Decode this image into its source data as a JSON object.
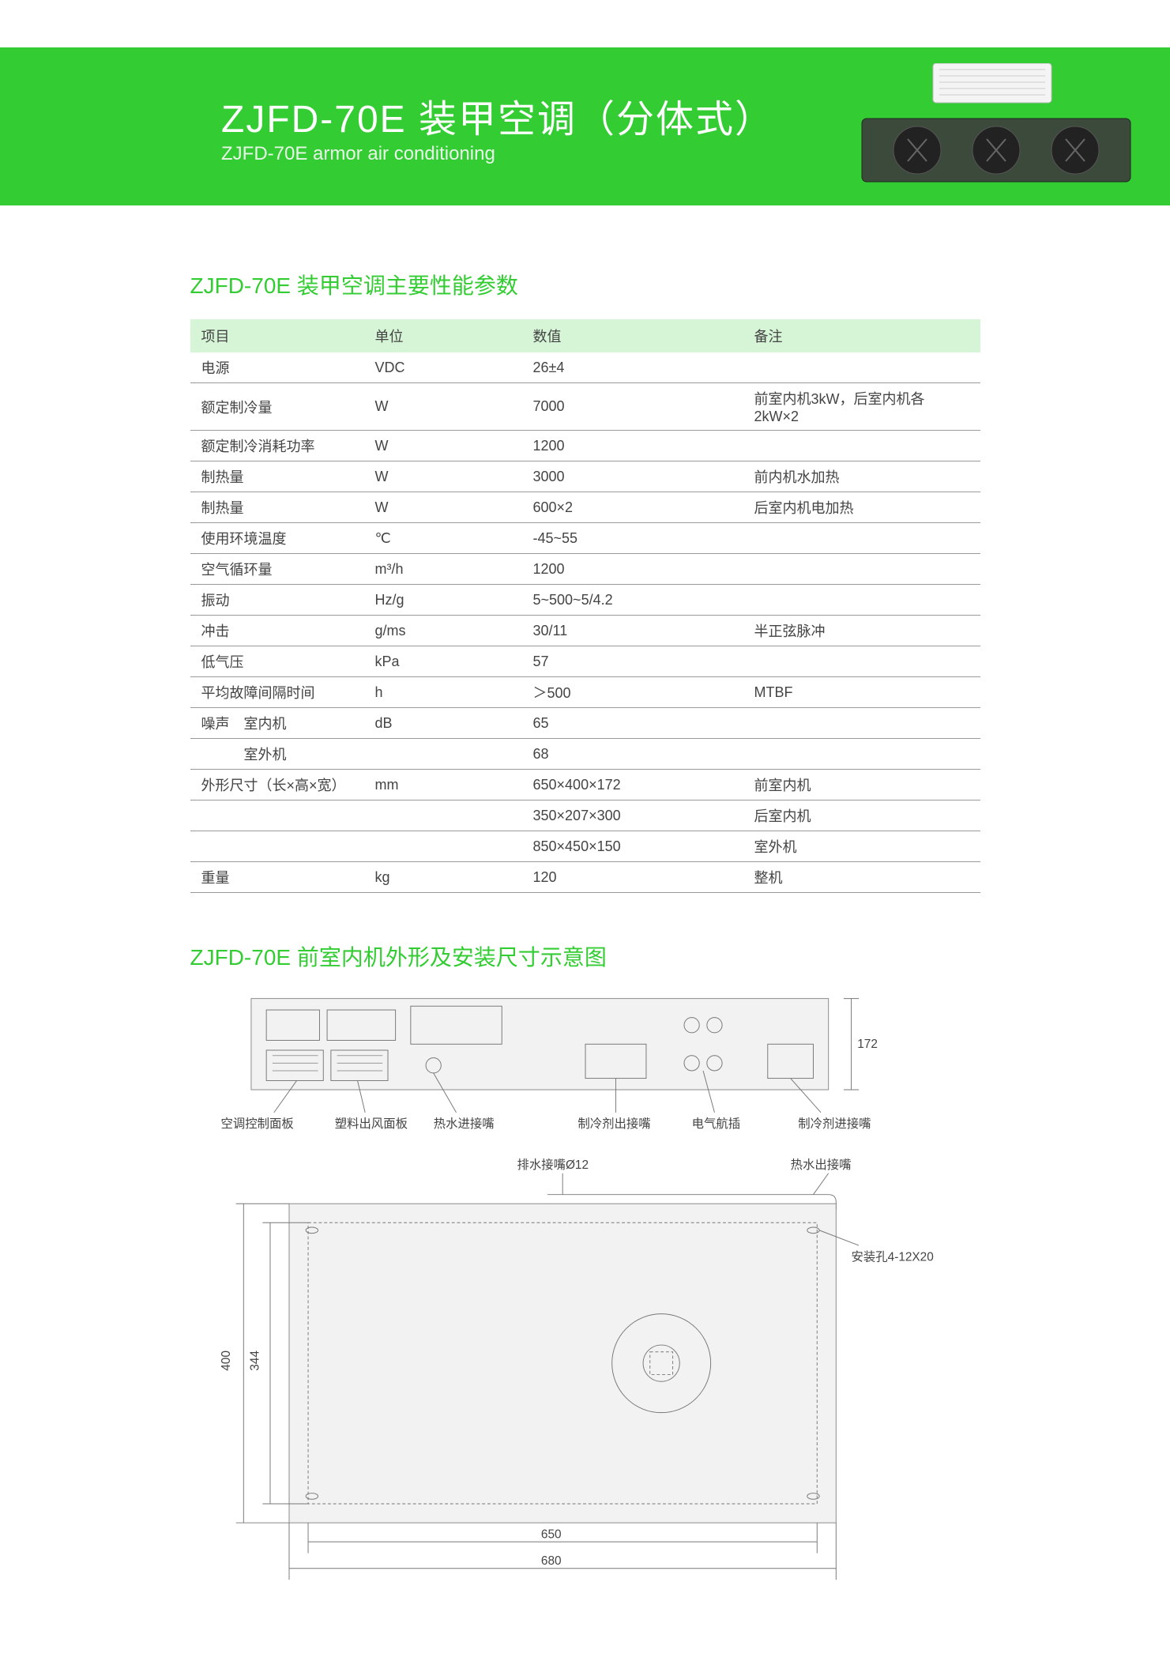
{
  "header": {
    "title_cn": "ZJFD-70E 装甲空调（分体式）",
    "title_en": "ZJFD-70E armor air conditioning",
    "bg_color": "#33cc33"
  },
  "section_table_title": "ZJFD-70E 装甲空调主要性能参数",
  "table": {
    "columns": [
      "项目",
      "单位",
      "数值",
      "备注"
    ],
    "header_bg": "#d6f5d6",
    "border_color": "#999999",
    "rows": [
      {
        "item": "电源",
        "unit": "VDC",
        "value": "26±4",
        "note": ""
      },
      {
        "item": "额定制冷量",
        "unit": "W",
        "value": "7000",
        "note": "前室内机3kW，后室内机各2kW×2"
      },
      {
        "item": "额定制冷消耗功率",
        "unit": "W",
        "value": "1200",
        "note": ""
      },
      {
        "item": "制热量",
        "unit": "W",
        "value": "3000",
        "note": "前内机水加热"
      },
      {
        "item": "制热量",
        "unit": "W",
        "value": "600×2",
        "note": "后室内机电加热"
      },
      {
        "item": "使用环境温度",
        "unit": "℃",
        "value": "-45~55",
        "note": ""
      },
      {
        "item": "空气循环量",
        "unit": "m³/h",
        "value": "1200",
        "note": ""
      },
      {
        "item": "振动",
        "unit": "Hz/g",
        "value": "5~500~5/4.2",
        "note": ""
      },
      {
        "item": "冲击",
        "unit": "g/ms",
        "value": "30/11",
        "note": "半正弦脉冲"
      },
      {
        "item": "低气压",
        "unit": "kPa",
        "value": "57",
        "note": ""
      },
      {
        "item": "平均故障间隔时间",
        "unit": "h",
        "value": "＞500",
        "note": "MTBF"
      },
      {
        "item": "噪声　室内机",
        "unit": "dB",
        "value": "65",
        "note": ""
      },
      {
        "item": "　　　室外机",
        "unit": "",
        "value": "68",
        "note": ""
      },
      {
        "item": "外形尺寸（长×高×宽）",
        "unit": "mm",
        "value": "650×400×172",
        "note": "前室内机"
      },
      {
        "item": "",
        "unit": "",
        "value": "350×207×300",
        "note": "后室内机"
      },
      {
        "item": "",
        "unit": "",
        "value": "850×450×150",
        "note": "室外机"
      },
      {
        "item": "重量",
        "unit": "kg",
        "value": "120",
        "note": "整机"
      }
    ]
  },
  "section_diagram_title": "ZJFD-70E 前室内机外形及安装尺寸示意图",
  "diagram": {
    "front": {
      "labels": {
        "a": "空调控制面板",
        "b": "塑料出风面板",
        "c": "热水进接嘴",
        "d": "制冷剂出接嘴",
        "e": "电气航插",
        "f": "制冷剂进接嘴"
      },
      "height_dim": "172"
    },
    "top": {
      "labels": {
        "drain": "排水接嘴Ø12",
        "hotout": "热水出接嘴",
        "hole": "安装孔4-12X20"
      },
      "dims": {
        "inner_h": "344",
        "outer_h": "400",
        "inner_w": "650",
        "outer_w": "680"
      }
    },
    "line_color": "#777777",
    "panel_fill": "#f2f2f2"
  }
}
